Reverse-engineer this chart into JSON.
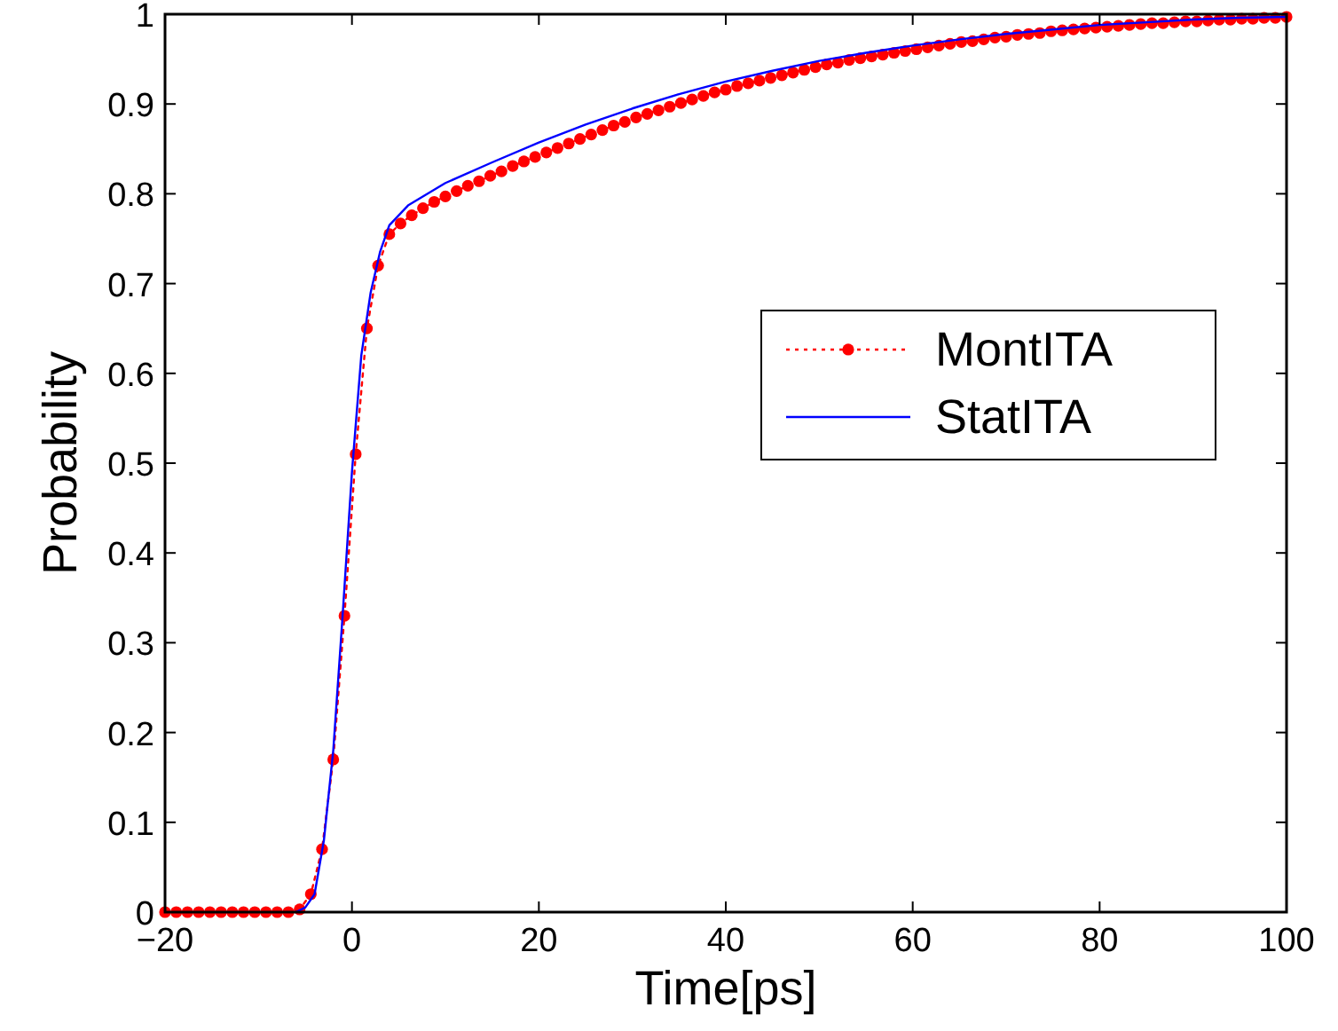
{
  "chart_data": {
    "type": "line",
    "xlabel": "Time[ps]",
    "ylabel": "Probability",
    "xlim": [
      -20,
      100
    ],
    "ylim": [
      0,
      1
    ],
    "xticks": [
      -20,
      0,
      20,
      40,
      60,
      80,
      100
    ],
    "yticks": [
      0,
      0.1,
      0.2,
      0.3,
      0.4,
      0.5,
      0.6,
      0.7,
      0.8,
      0.9,
      1
    ],
    "legend": "right",
    "grid": false,
    "series": [
      {
        "name": "MontITA",
        "color": "#ff0000",
        "marker": "circle",
        "line_style": "dotted",
        "x": [
          -20,
          -18.8,
          -17.6,
          -16.4,
          -15.2,
          -14,
          -12.8,
          -11.6,
          -10.4,
          -9.2,
          -8,
          -6.8,
          -5.6,
          -4.4,
          -3.2,
          -2,
          -0.8,
          0.4,
          1.6,
          2.8,
          4,
          5.2,
          6.4,
          7.6,
          8.8,
          10,
          11.2,
          12.4,
          13.6,
          14.8,
          16,
          17.2,
          18.4,
          19.6,
          20.8,
          22,
          23.2,
          24.4,
          25.6,
          26.8,
          28,
          29.2,
          30.4,
          31.6,
          32.8,
          34,
          35.2,
          36.4,
          37.6,
          38.8,
          40,
          41.2,
          42.4,
          43.6,
          44.8,
          46,
          47.2,
          48.4,
          49.6,
          50.8,
          52,
          53.2,
          54.4,
          55.6,
          56.8,
          58,
          59.2,
          60.4,
          61.6,
          62.8,
          64,
          65.2,
          66.4,
          67.6,
          68.8,
          70,
          71.2,
          72.4,
          73.6,
          74.8,
          76,
          77.2,
          78.4,
          79.6,
          80.8,
          82,
          83.2,
          84.4,
          85.6,
          86.8,
          88,
          89.2,
          90.4,
          91.6,
          92.8,
          94,
          95.2,
          96.4,
          97.6,
          98.8,
          100
        ],
        "values": [
          0,
          0,
          0,
          0,
          0,
          0,
          0,
          0,
          0,
          0,
          0,
          0,
          0.003,
          0.02,
          0.07,
          0.17,
          0.33,
          0.51,
          0.65,
          0.72,
          0.755,
          0.767,
          0.776,
          0.784,
          0.791,
          0.797,
          0.803,
          0.809,
          0.814,
          0.82,
          0.825,
          0.831,
          0.836,
          0.841,
          0.846,
          0.851,
          0.856,
          0.861,
          0.866,
          0.871,
          0.876,
          0.88,
          0.885,
          0.889,
          0.893,
          0.897,
          0.901,
          0.905,
          0.909,
          0.913,
          0.916,
          0.92,
          0.923,
          0.926,
          0.929,
          0.932,
          0.935,
          0.938,
          0.941,
          0.944,
          0.946,
          0.949,
          0.951,
          0.953,
          0.955,
          0.957,
          0.959,
          0.961,
          0.963,
          0.965,
          0.967,
          0.969,
          0.97,
          0.972,
          0.974,
          0.975,
          0.977,
          0.978,
          0.979,
          0.981,
          0.982,
          0.983,
          0.984,
          0.985,
          0.986,
          0.987,
          0.988,
          0.989,
          0.99,
          0.99,
          0.991,
          0.992,
          0.992,
          0.993,
          0.994,
          0.994,
          0.995,
          0.995,
          0.996,
          0.996,
          0.997
        ]
      },
      {
        "name": "StatITA",
        "color": "#0000ff",
        "marker": "none",
        "line_style": "solid",
        "x": [
          -6,
          -5,
          -4,
          -3,
          -2,
          -1,
          0,
          1,
          2,
          3,
          4,
          6,
          10,
          15,
          20,
          25,
          30,
          35,
          40,
          45,
          50,
          55,
          60,
          65,
          70,
          75,
          80,
          85,
          90,
          95,
          100
        ],
        "values": [
          0,
          0.005,
          0.02,
          0.08,
          0.18,
          0.33,
          0.49,
          0.62,
          0.69,
          0.735,
          0.765,
          0.787,
          0.812,
          0.835,
          0.857,
          0.877,
          0.895,
          0.911,
          0.925,
          0.937,
          0.948,
          0.957,
          0.965,
          0.972,
          0.978,
          0.983,
          0.988,
          0.991,
          0.994,
          0.996,
          0.997
        ]
      }
    ]
  }
}
